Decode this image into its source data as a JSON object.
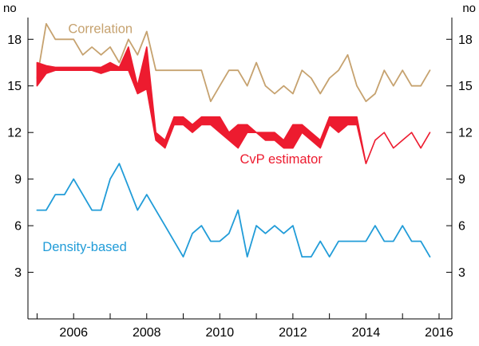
{
  "chart_data": {
    "type": "line",
    "title": "",
    "ylabel_left": "no",
    "ylabel_right": "no",
    "xlim": [
      2004.75,
      2016.35
    ],
    "ylim": [
      0,
      19.4
    ],
    "x_ticks": [
      2006,
      2008,
      2010,
      2012,
      2014,
      2016
    ],
    "y_ticks": [
      3,
      6,
      9,
      12,
      15,
      18
    ],
    "minor_x_tick_start": 2005,
    "minor_x_tick_end": 2016,
    "axis_color": "#000000",
    "x": [
      2005,
      2005.25,
      2005.5,
      2005.75,
      2006,
      2006.25,
      2006.5,
      2006.75,
      2007,
      2007.25,
      2007.5,
      2007.75,
      2008,
      2008.25,
      2008.5,
      2008.75,
      2009,
      2009.25,
      2009.5,
      2009.75,
      2010,
      2010.25,
      2010.5,
      2010.75,
      2011,
      2011.25,
      2011.5,
      2011.75,
      2012,
      2012.25,
      2012.5,
      2012.75,
      2013,
      2013.25,
      2013.5,
      2013.75,
      2014,
      2014.25,
      2014.5,
      2014.75,
      2015,
      2015.25,
      2015.5,
      2015.75
    ],
    "series": [
      {
        "name": "Correlation",
        "color": "#C6A26F",
        "values": [
          15.5,
          19,
          18,
          18,
          18,
          17,
          17.5,
          17,
          17.5,
          16.5,
          18,
          17,
          18.5,
          16,
          16,
          16,
          16,
          16,
          16,
          14,
          15,
          16,
          16,
          15,
          16.5,
          15,
          14.5,
          15,
          14.5,
          16,
          15.5,
          14.5,
          15.5,
          16,
          17,
          15,
          14,
          14.5,
          16,
          15,
          16,
          15,
          15,
          16
        ]
      },
      {
        "name": "CvP estimator",
        "color": "#ED1B2F",
        "band": true,
        "upper": [
          16.5,
          16.3,
          16.2,
          16.2,
          16.2,
          16.2,
          16.2,
          16.2,
          16.5,
          16.2,
          17.5,
          15.0,
          17.5,
          12.0,
          11.5,
          13.0,
          13.0,
          12.5,
          13.0,
          13.0,
          13.0,
          12.0,
          12.5,
          12.5,
          12.0,
          12.0,
          12.0,
          11.5,
          12.5,
          12.5,
          12.0,
          11.5,
          13.0,
          13.0,
          13.0,
          13.0,
          10.0,
          11.5,
          12.0,
          11.0,
          11.5,
          12.0,
          11.0,
          12.0
        ],
        "lower": [
          15.0,
          15.8,
          16.0,
          16.0,
          16.0,
          16.0,
          16.0,
          15.8,
          16.0,
          16.0,
          16.0,
          14.5,
          14.8,
          11.5,
          11.0,
          12.5,
          12.5,
          12.0,
          12.5,
          12.5,
          12.0,
          11.5,
          11.0,
          12.0,
          12.0,
          11.5,
          11.5,
          11.0,
          11.0,
          12.0,
          11.5,
          11.0,
          12.5,
          12.0,
          12.5,
          12.5,
          10.0,
          11.5,
          12.0,
          11.0,
          11.5,
          12.0,
          11.0,
          12.0
        ]
      },
      {
        "name": "Density-based",
        "color": "#219CD8",
        "values": [
          7,
          7,
          8,
          8,
          9,
          8,
          7,
          7,
          9,
          10,
          8.5,
          7,
          8,
          7,
          6,
          5,
          4,
          5.5,
          6,
          5,
          5,
          5.5,
          7,
          4,
          6,
          5.5,
          6,
          5.5,
          6,
          4,
          4,
          5,
          4,
          5,
          5,
          5,
          5,
          6,
          5,
          5,
          6,
          5,
          5,
          4
        ]
      }
    ],
    "annotations": [
      {
        "text": "Correlation",
        "x": 2005.85,
        "y": 18.4,
        "color": "#C6A26F"
      },
      {
        "text": "CvP estimator",
        "x": 2010.55,
        "y": 10.0,
        "color": "#ED1B2F"
      },
      {
        "text": "Density-based",
        "x": 2005.15,
        "y": 4.35,
        "color": "#219CD8"
      }
    ]
  }
}
